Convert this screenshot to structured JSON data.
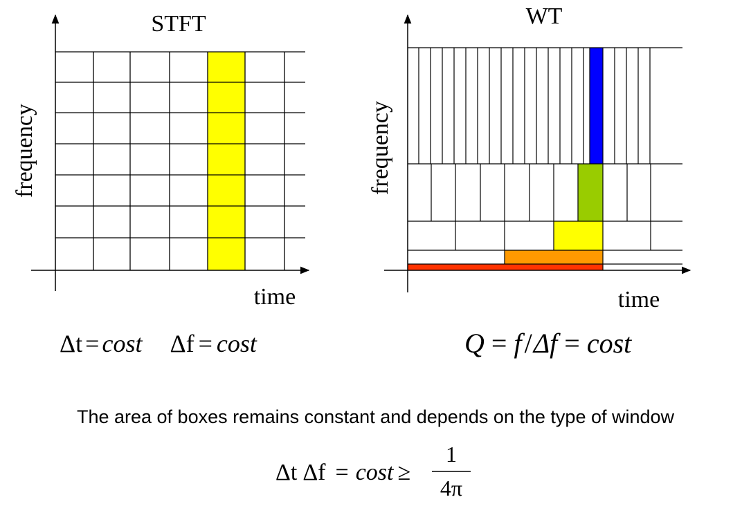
{
  "stft": {
    "title": "STFT",
    "ylabel": "frequency",
    "xlabel": "time",
    "formula": {
      "dt": "Δt",
      "df": "Δf",
      "eq": "=",
      "cost": "cost"
    },
    "highlight_color": "#ffff00"
  },
  "wt": {
    "title": "WT",
    "ylabel": "frequency",
    "xlabel": "time",
    "formula": {
      "q": "Q",
      "eq": "=",
      "f": "f",
      "slash": "/",
      "df": "Δf",
      "cost": "cost"
    },
    "colors": {
      "red": "#ff3300",
      "orange": "#ff9900",
      "yellow": "#ffff00",
      "green": "#99cc00",
      "blue": "#0000ff"
    }
  },
  "caption": "The area of boxes remains constant and depends on the type of window",
  "inequality": {
    "dt": "Δt",
    "df": "Δf",
    "eq": "=",
    "cost": "cost",
    "ge": "≥",
    "num": "1",
    "den": "4π"
  }
}
